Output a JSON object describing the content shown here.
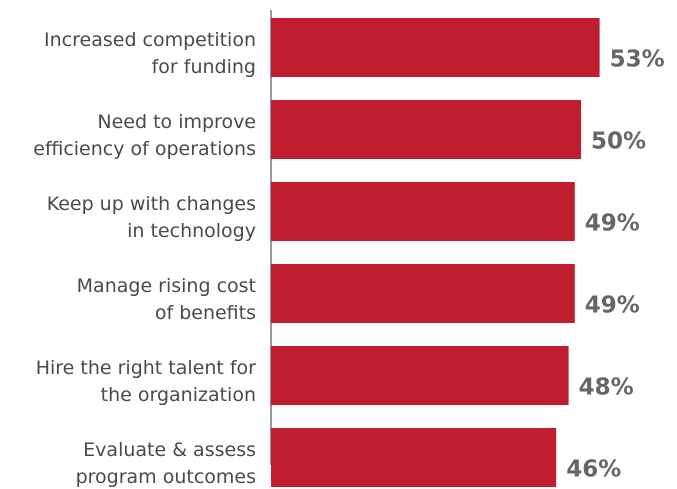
{
  "chart_data": {
    "type": "bar",
    "orientation": "horizontal",
    "categories": [
      [
        "Increased competition",
        "for funding"
      ],
      [
        "Need to improve",
        "efficiency of operations"
      ],
      [
        "Keep up with changes",
        "in technology"
      ],
      [
        "Manage rising cost",
        "of benefits"
      ],
      [
        "Hire the right talent for",
        "the organization"
      ],
      [
        "Evaluate & assess",
        "program outcomes"
      ]
    ],
    "values": [
      53,
      50,
      49,
      49,
      48,
      46
    ],
    "value_labels": [
      "53%",
      "50%",
      "49%",
      "49%",
      "48%",
      "46%"
    ],
    "value_unit": "%",
    "title": "",
    "xlabel": "",
    "ylabel": "",
    "xlim": [
      0,
      60
    ],
    "grid": false,
    "legend": "none",
    "colors": {
      "bar": "#c01e2e",
      "value_label": "#666666",
      "category_label": "#4a4a4a",
      "axis": "#333333"
    }
  }
}
